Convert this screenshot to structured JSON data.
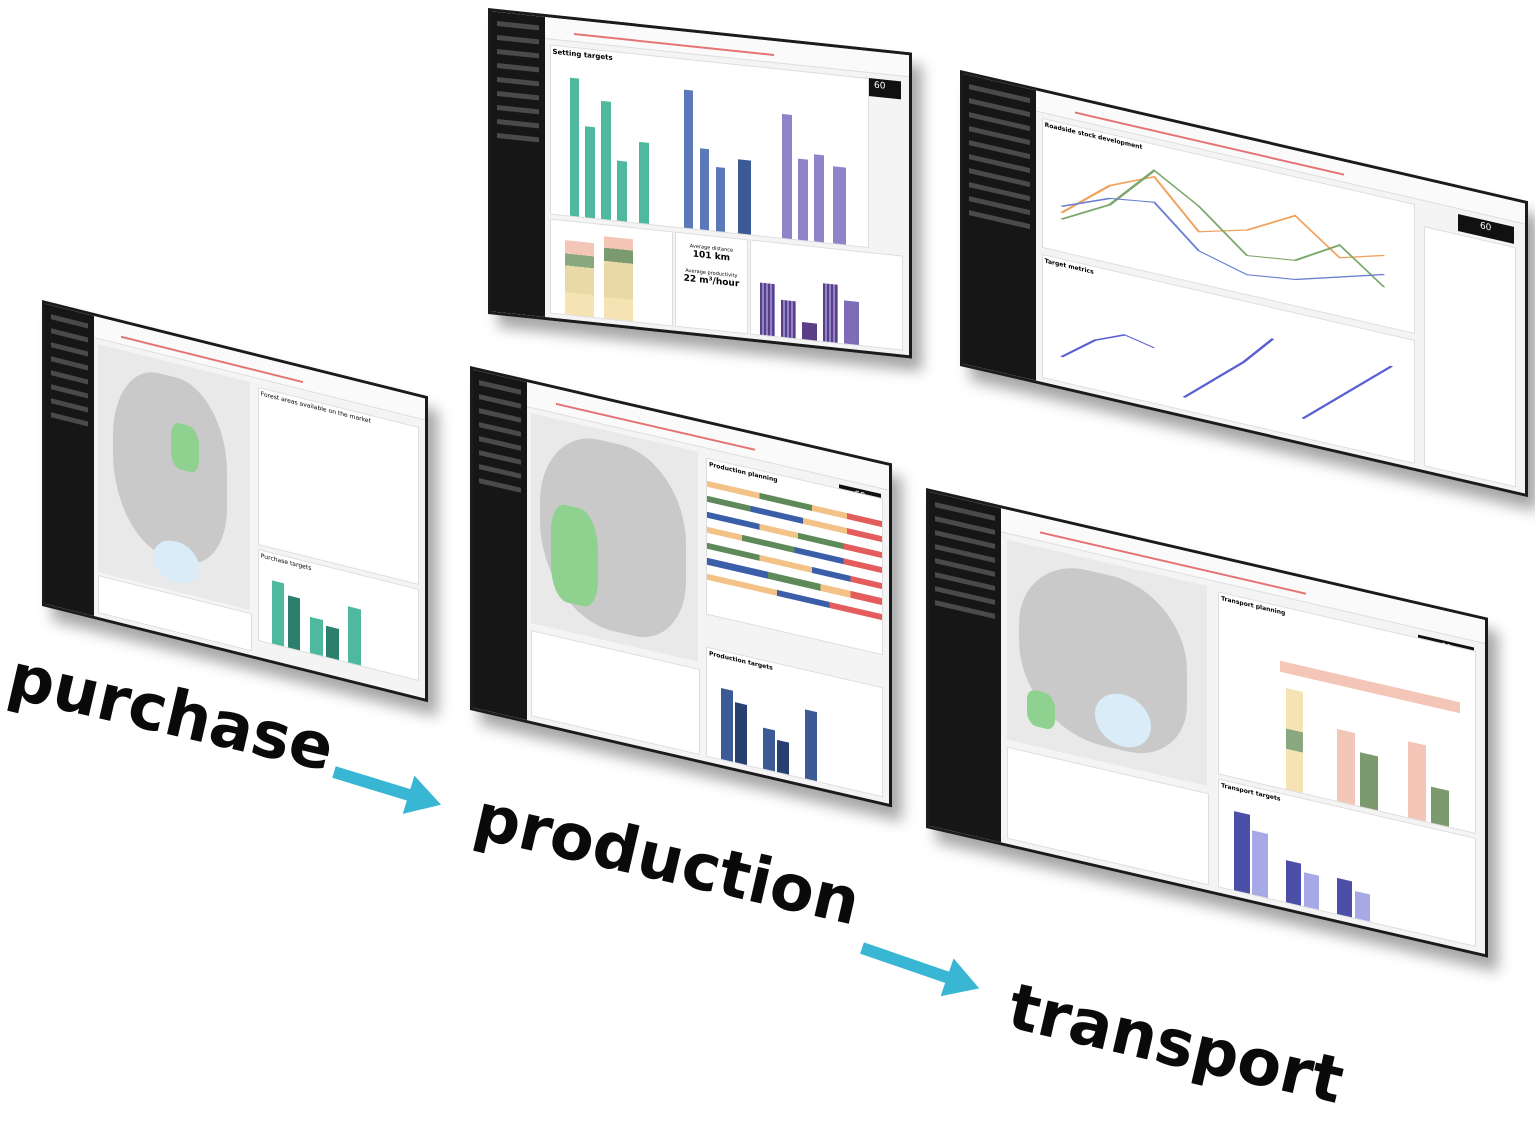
{
  "stages": {
    "purchase": "purchase",
    "production": "production",
    "transport": "transport"
  },
  "colors": {
    "arrow": "#39b6d3",
    "sidebar": "#161616",
    "teal_bars": "#4fb9a0",
    "blue_bars": "#5b78b8",
    "purple_bars": "#8f84c9",
    "map_green": "#8fd18f",
    "alarm_red": "#e57373"
  },
  "screens": {
    "settings": {
      "title": "Setting targets",
      "metric_1_label": "Average distance",
      "metric_1_value": "101 km",
      "metric_2_label": "Average productivity",
      "metric_2_value": "22 m³/hour"
    },
    "stock": {
      "title": "Roadside stock development",
      "subtitle": "Target metrics"
    },
    "purchase": {
      "title": "Forest areas available on the market",
      "subtitle": "Purchase targets"
    },
    "production": {
      "title": "Production planning",
      "subtitle": "Production targets"
    },
    "transport": {
      "title": "Transport planning",
      "subtitle": "Transport targets"
    }
  },
  "icons": [
    "arrow-icon"
  ]
}
